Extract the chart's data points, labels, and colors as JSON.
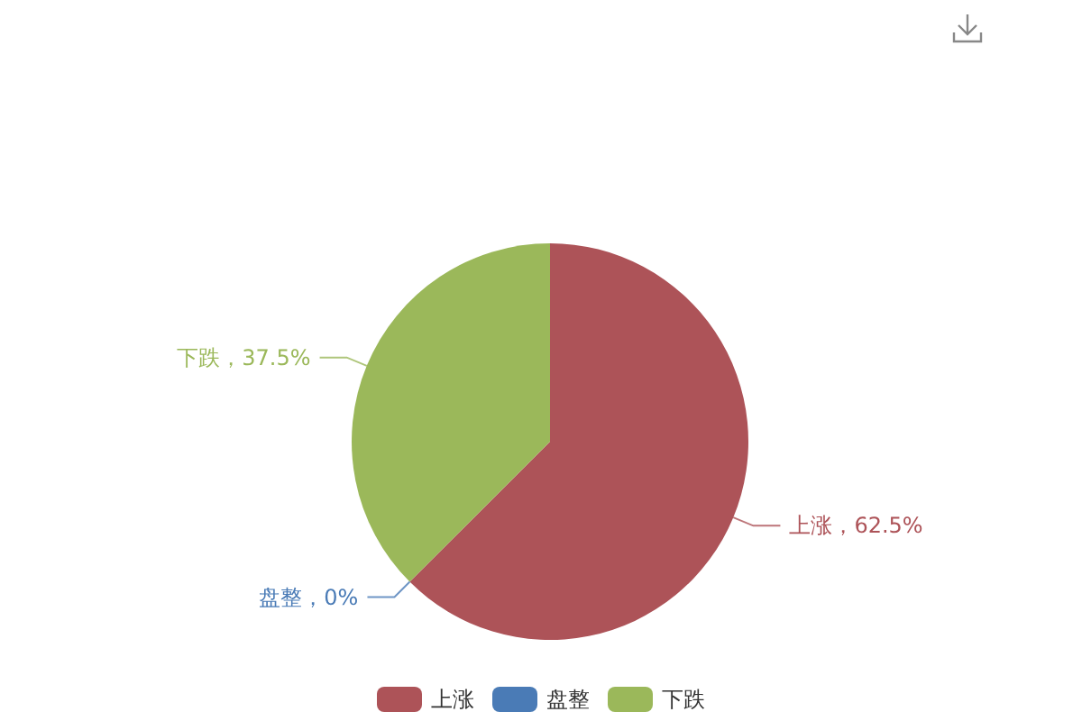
{
  "chart_data": {
    "type": "pie",
    "categories": [
      "上涨",
      "盘整",
      "下跌"
    ],
    "values": [
      62.5,
      0,
      37.5
    ],
    "colors": [
      "#ad5358",
      "#4a7bb6",
      "#9bb85a"
    ],
    "value_labels": [
      "上涨，62.5%",
      "盘整，0%",
      "下跌，37.5%"
    ],
    "legend": "bottom"
  }
}
